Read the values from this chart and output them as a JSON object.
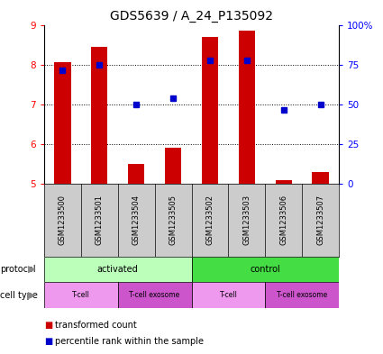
{
  "title": "GDS5639 / A_24_P135092",
  "samples": [
    "GSM1233500",
    "GSM1233501",
    "GSM1233504",
    "GSM1233505",
    "GSM1233502",
    "GSM1233503",
    "GSM1233506",
    "GSM1233507"
  ],
  "transformed_count": [
    8.05,
    8.45,
    5.5,
    5.9,
    8.7,
    8.85,
    5.1,
    5.3
  ],
  "percentile_rank_left": [
    7.85,
    8.0,
    7.0,
    7.15,
    8.1,
    8.1,
    6.85,
    7.0
  ],
  "ylim_left": [
    5,
    9
  ],
  "ylim_right": [
    0,
    100
  ],
  "yticks_left": [
    5,
    6,
    7,
    8,
    9
  ],
  "ytick_labels_left": [
    "5",
    "6",
    "7",
    "8",
    "9"
  ],
  "yticks_right": [
    0,
    25,
    50,
    75,
    100
  ],
  "ytick_labels_right": [
    "0",
    "25",
    "50",
    "75",
    "100%"
  ],
  "bar_color": "#cc0000",
  "dot_color": "#0000cc",
  "bar_bottom": 5.0,
  "protocol_groups": [
    {
      "label": "activated",
      "start": 0,
      "end": 4,
      "color": "#bbffbb"
    },
    {
      "label": "control",
      "start": 4,
      "end": 8,
      "color": "#44dd44"
    }
  ],
  "cell_type_groups": [
    {
      "label": "T-cell",
      "start": 0,
      "end": 2,
      "color": "#ee99ee"
    },
    {
      "label": "T-cell exosome",
      "start": 2,
      "end": 4,
      "color": "#cc55cc"
    },
    {
      "label": "T-cell",
      "start": 4,
      "end": 6,
      "color": "#ee99ee"
    },
    {
      "label": "T-cell exosome",
      "start": 6,
      "end": 8,
      "color": "#cc55cc"
    }
  ],
  "legend_bar_label": "transformed count",
  "legend_dot_label": "percentile rank within the sample",
  "bg_color": "#ffffff",
  "sample_bg_color": "#cccccc",
  "title_fontsize": 10,
  "tick_fontsize": 7.5,
  "sample_fontsize": 6,
  "annotation_fontsize": 7,
  "legend_fontsize": 7
}
